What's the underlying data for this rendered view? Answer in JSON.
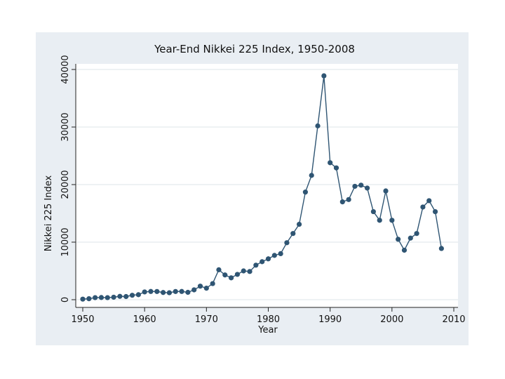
{
  "chart_data": {
    "type": "line",
    "title": "Year-End Nikkei 225 Index, 1950-2008",
    "xlabel": "Year",
    "ylabel": "Nikkei 225 Index",
    "xlim": [
      1950,
      2010
    ],
    "ylim": [
      0,
      40000
    ],
    "xticks": [
      1950,
      1960,
      1970,
      1980,
      1990,
      2000,
      2010
    ],
    "yticks": [
      0,
      10000,
      20000,
      30000,
      40000
    ],
    "grid": "horizontal",
    "series": [
      {
        "name": "Nikkei 225",
        "color": "#2f5573",
        "x": [
          1950,
          1951,
          1952,
          1953,
          1954,
          1955,
          1956,
          1957,
          1958,
          1959,
          1960,
          1961,
          1962,
          1963,
          1964,
          1965,
          1966,
          1967,
          1968,
          1969,
          1970,
          1971,
          1972,
          1973,
          1974,
          1975,
          1976,
          1977,
          1978,
          1979,
          1980,
          1981,
          1982,
          1983,
          1984,
          1985,
          1986,
          1987,
          1988,
          1989,
          1990,
          1991,
          1992,
          1993,
          1994,
          1995,
          1996,
          1997,
          1998,
          1999,
          2000,
          2001,
          2002,
          2003,
          2004,
          2005,
          2006,
          2007,
          2008
        ],
        "values": [
          100,
          170,
          360,
          380,
          360,
          430,
          580,
          550,
          770,
          870,
          1350,
          1430,
          1420,
          1250,
          1210,
          1420,
          1430,
          1280,
          1710,
          2350,
          2000,
          2800,
          5200,
          4300,
          3800,
          4400,
          5000,
          4900,
          6000,
          6600,
          7100,
          7700,
          8000,
          9900,
          11500,
          13100,
          18700,
          21600,
          30200,
          38900,
          23800,
          22900,
          17000,
          17400,
          19700,
          19900,
          19400,
          15300,
          13800,
          18900,
          13800,
          10500,
          8600,
          10700,
          11500,
          16100,
          17200,
          15300,
          8900
        ]
      }
    ]
  }
}
